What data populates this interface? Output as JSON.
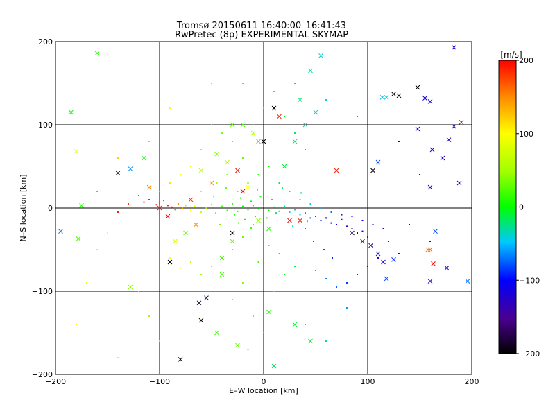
{
  "chart_data": {
    "type": "scatter",
    "title": "Tromsø 20150611 16:40:00–16:41:43",
    "subtitle": "RwPretec (8p) EXPERIMENTAL SKYMAP",
    "xlabel": "E–W location [km]",
    "ylabel": "N–S location [km]",
    "xlim": [
      -200,
      200
    ],
    "ylim": [
      -200,
      200
    ],
    "xticks": [
      -200,
      -100,
      0,
      100,
      200
    ],
    "yticks": [
      -200,
      -100,
      0,
      100,
      200
    ],
    "grid": true,
    "colorbar": {
      "label": "[m/s]",
      "range": [
        -200,
        200
      ],
      "ticks": [
        200,
        100,
        0,
        -100,
        -200
      ],
      "colormap": "rainbow-black-to-red"
    },
    "series": [
      {
        "marker": "dot",
        "points": [
          [
            -100,
            6,
            180
          ],
          [
            -103,
            4,
            190
          ],
          [
            -96,
            9,
            170
          ],
          [
            -92,
            3,
            185
          ],
          [
            -88,
            1,
            175
          ],
          [
            -85,
            -2,
            160
          ],
          [
            -110,
            10,
            190
          ],
          [
            -115,
            7,
            195
          ],
          [
            -82,
            5,
            150
          ],
          [
            -78,
            0,
            140
          ],
          [
            -75,
            3,
            130
          ],
          [
            -70,
            -3,
            110
          ],
          [
            -66,
            2,
            90
          ],
          [
            -60,
            -5,
            70
          ],
          [
            -55,
            0,
            60
          ],
          [
            -50,
            4,
            40
          ],
          [
            -46,
            -6,
            30
          ],
          [
            -40,
            2,
            20
          ],
          [
            -35,
            -3,
            15
          ],
          [
            -30,
            5,
            10
          ],
          [
            -25,
            -4,
            5
          ],
          [
            -20,
            2,
            0
          ],
          [
            -15,
            -2,
            -5
          ],
          [
            -10,
            3,
            0
          ],
          [
            -5,
            -1,
            5
          ],
          [
            0,
            2,
            10
          ],
          [
            5,
            -3,
            0
          ],
          [
            10,
            1,
            -10
          ],
          [
            15,
            -4,
            -20
          ],
          [
            20,
            2,
            -25
          ],
          [
            25,
            -5,
            -35
          ],
          [
            30,
            -2,
            -45
          ],
          [
            35,
            -8,
            -55
          ],
          [
            40,
            -6,
            -65
          ],
          [
            45,
            -12,
            -75
          ],
          [
            50,
            -10,
            -85
          ],
          [
            55,
            -15,
            -95
          ],
          [
            60,
            -12,
            -100
          ],
          [
            65,
            -18,
            -110
          ],
          [
            70,
            -20,
            -115
          ],
          [
            75,
            -14,
            -120
          ],
          [
            80,
            -22,
            -130
          ],
          [
            85,
            -25,
            -120
          ],
          [
            90,
            -30,
            -110
          ],
          [
            95,
            -28,
            -100
          ],
          [
            100,
            -35,
            -95
          ],
          [
            40,
            -25,
            -60
          ],
          [
            48,
            -40,
            -70
          ],
          [
            58,
            -50,
            -80
          ],
          [
            66,
            -60,
            -90
          ],
          [
            -10,
            -20,
            20
          ],
          [
            -20,
            -35,
            30
          ],
          [
            -30,
            -50,
            25
          ],
          [
            -40,
            -60,
            35
          ],
          [
            -50,
            -70,
            40
          ],
          [
            -60,
            -80,
            50
          ],
          [
            -70,
            -65,
            60
          ],
          [
            -80,
            -72,
            90
          ],
          [
            -90,
            -60,
            100
          ],
          [
            -20,
            -90,
            40
          ],
          [
            -30,
            -110,
            35
          ],
          [
            -10,
            -130,
            30
          ],
          [
            0,
            -150,
            20
          ],
          [
            -15,
            -170,
            25
          ],
          [
            10,
            -100,
            10
          ],
          [
            20,
            -80,
            0
          ],
          [
            30,
            -70,
            -10
          ],
          [
            15,
            -55,
            5
          ],
          [
            5,
            -45,
            15
          ],
          [
            -5,
            -65,
            20
          ],
          [
            -20,
            60,
            30
          ],
          [
            -30,
            80,
            25
          ],
          [
            -10,
            100,
            15
          ],
          [
            0,
            120,
            10
          ],
          [
            10,
            140,
            5
          ],
          [
            20,
            110,
            -5
          ],
          [
            30,
            90,
            -15
          ],
          [
            40,
            70,
            -20
          ],
          [
            -40,
            90,
            35
          ],
          [
            -50,
            100,
            40
          ],
          [
            -60,
            70,
            50
          ],
          [
            -70,
            50,
            70
          ],
          [
            -80,
            40,
            90
          ],
          [
            -90,
            30,
            110
          ],
          [
            -100,
            20,
            140
          ],
          [
            -120,
            15,
            170
          ],
          [
            -130,
            5,
            180
          ],
          [
            -140,
            -5,
            190
          ],
          [
            -60,
            20,
            60
          ],
          [
            -45,
            30,
            45
          ],
          [
            -35,
            40,
            40
          ],
          [
            -25,
            20,
            30
          ],
          [
            -15,
            30,
            20
          ],
          [
            -5,
            40,
            10
          ],
          [
            5,
            50,
            0
          ],
          [
            15,
            30,
            -10
          ],
          [
            25,
            20,
            -20
          ],
          [
            35,
            10,
            -30
          ],
          [
            45,
            5,
            -40
          ],
          [
            55,
            0,
            -50
          ],
          [
            65,
            -5,
            -70
          ],
          [
            75,
            -8,
            -90
          ],
          [
            85,
            -10,
            -100
          ],
          [
            95,
            -15,
            -110
          ],
          [
            105,
            -20,
            -115
          ],
          [
            115,
            -25,
            -120
          ],
          [
            120,
            -40,
            -130
          ],
          [
            130,
            -55,
            -140
          ],
          [
            110,
            -60,
            -120
          ],
          [
            100,
            -70,
            -105
          ],
          [
            90,
            -80,
            -95
          ],
          [
            80,
            -90,
            -85
          ],
          [
            70,
            -95,
            -75
          ],
          [
            60,
            -85,
            -65
          ],
          [
            50,
            -75,
            -55
          ],
          [
            -150,
            -30,
            100
          ],
          [
            -160,
            -50,
            80
          ],
          [
            -170,
            -90,
            90
          ],
          [
            -180,
            -140,
            110
          ],
          [
            -120,
            -100,
            60
          ],
          [
            -110,
            -130,
            55
          ],
          [
            -100,
            -160,
            45
          ],
          [
            -140,
            -180,
            75
          ],
          [
            40,
            -140,
            -20
          ],
          [
            60,
            -160,
            -30
          ],
          [
            80,
            -120,
            -60
          ],
          [
            100,
            -100,
            -90
          ],
          [
            140,
            -20,
            -130
          ],
          [
            160,
            -40,
            -120
          ],
          [
            -20,
            150,
            20
          ],
          [
            -50,
            150,
            35
          ],
          [
            -90,
            120,
            100
          ],
          [
            -110,
            80,
            130
          ],
          [
            -140,
            60,
            120
          ],
          [
            -160,
            20,
            150
          ],
          [
            30,
            150,
            -10
          ],
          [
            60,
            130,
            -40
          ],
          [
            90,
            110,
            -60
          ],
          [
            130,
            80,
            -110
          ],
          [
            150,
            40,
            -120
          ],
          [
            -30,
            5,
            12
          ],
          [
            -28,
            -8,
            8
          ],
          [
            -22,
            12,
            4
          ],
          [
            -18,
            -14,
            -2
          ],
          [
            -12,
            8,
            -6
          ],
          [
            -8,
            -10,
            -4
          ],
          [
            -3,
            14,
            2
          ],
          [
            3,
            -12,
            -8
          ],
          [
            8,
            10,
            -12
          ],
          [
            12,
            -6,
            -16
          ],
          [
            -6,
            22,
            6
          ],
          [
            -12,
            -24,
            10
          ],
          [
            18,
            24,
            -18
          ],
          [
            -24,
            -18,
            18
          ],
          [
            28,
            -22,
            -30
          ],
          [
            -36,
            24,
            26
          ],
          [
            36,
            18,
            -26
          ],
          [
            -42,
            -20,
            34
          ],
          [
            42,
            -16,
            -48
          ],
          [
            -48,
            14,
            38
          ]
        ]
      },
      {
        "marker": "cross",
        "points": [
          [
            -160,
            186,
            10
          ],
          [
            -185,
            115,
            0
          ],
          [
            -180,
            68,
            90
          ],
          [
            -175,
            3,
            10
          ],
          [
            -178,
            -37,
            20
          ],
          [
            -195,
            -28,
            -70
          ],
          [
            -140,
            42,
            -200
          ],
          [
            -128,
            -95,
            40
          ],
          [
            -80,
            -182,
            -200
          ],
          [
            -60,
            -135,
            -200
          ],
          [
            -62,
            -114,
            -180
          ],
          [
            -55,
            -108,
            -180
          ],
          [
            -30,
            -40,
            30
          ],
          [
            -40,
            -60,
            20
          ],
          [
            -75,
            -30,
            30
          ],
          [
            -90,
            -65,
            -200
          ],
          [
            -85,
            -40,
            80
          ],
          [
            -110,
            25,
            150
          ],
          [
            -100,
            0,
            190
          ],
          [
            -92,
            -10,
            200
          ],
          [
            -70,
            10,
            180
          ],
          [
            -65,
            -20,
            150
          ],
          [
            -50,
            30,
            150
          ],
          [
            -35,
            55,
            60
          ],
          [
            -25,
            45,
            200
          ],
          [
            -15,
            25,
            100
          ],
          [
            -5,
            -15,
            40
          ],
          [
            5,
            -25,
            10
          ],
          [
            25,
            -15,
            200
          ],
          [
            35,
            -15,
            190
          ],
          [
            20,
            50,
            -10
          ],
          [
            30,
            80,
            -20
          ],
          [
            40,
            100,
            -30
          ],
          [
            50,
            115,
            -40
          ],
          [
            55,
            183,
            -40
          ],
          [
            45,
            165,
            -30
          ],
          [
            10,
            120,
            -200
          ],
          [
            15,
            110,
            190
          ],
          [
            0,
            80,
            -200
          ],
          [
            -10,
            90,
            50
          ],
          [
            -20,
            20,
            200
          ],
          [
            -30,
            -30,
            -200
          ],
          [
            -40,
            -80,
            20
          ],
          [
            -45,
            -150,
            20
          ],
          [
            -25,
            -165,
            30
          ],
          [
            10,
            -190,
            -20
          ],
          [
            5,
            -125,
            10
          ],
          [
            30,
            -140,
            -10
          ],
          [
            45,
            -160,
            -5
          ],
          [
            70,
            45,
            190
          ],
          [
            85,
            -30,
            -180
          ],
          [
            95,
            -40,
            -120
          ],
          [
            103,
            -45,
            -140
          ],
          [
            105,
            45,
            -200
          ],
          [
            110,
            -55,
            -110
          ],
          [
            115,
            -65,
            -100
          ],
          [
            118,
            -85,
            -80
          ],
          [
            125,
            -62,
            -90
          ],
          [
            110,
            55,
            -80
          ],
          [
            125,
            137,
            -200
          ],
          [
            130,
            135,
            -200
          ],
          [
            148,
            145,
            -200
          ],
          [
            155,
            132,
            -120
          ],
          [
            160,
            128,
            -100
          ],
          [
            148,
            95,
            -120
          ],
          [
            162,
            70,
            -120
          ],
          [
            172,
            60,
            -120
          ],
          [
            178,
            82,
            -120
          ],
          [
            183,
            98,
            -120
          ],
          [
            190,
            103,
            200
          ],
          [
            183,
            193,
            -120
          ],
          [
            160,
            25,
            -120
          ],
          [
            165,
            -28,
            -80
          ],
          [
            160,
            -50,
            160
          ],
          [
            158,
            -50,
            160
          ],
          [
            163,
            -67,
            200
          ],
          [
            160,
            -88,
            -120
          ],
          [
            176,
            -72,
            -120
          ],
          [
            188,
            30,
            -120
          ],
          [
            196,
            -88,
            -70
          ],
          [
            114,
            133,
            -50
          ],
          [
            118,
            133,
            -40
          ],
          [
            -128,
            47,
            -60
          ],
          [
            -115,
            60,
            0
          ],
          [
            -60,
            45,
            60
          ],
          [
            -45,
            65,
            40
          ],
          [
            -30,
            100,
            30
          ],
          [
            -20,
            100,
            20
          ],
          [
            -5,
            80,
            10
          ],
          [
            35,
            130,
            -20
          ]
        ]
      }
    ]
  }
}
